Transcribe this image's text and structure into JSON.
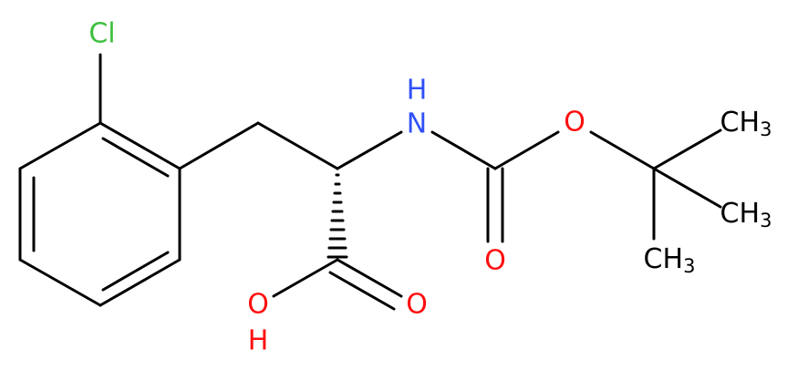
{
  "atoms": {
    "chlorine": {
      "text": "Cl"
    },
    "nitrogen": {
      "text": "N"
    },
    "nitrogen_h": {
      "text": "H"
    },
    "ester_oxygen": {
      "text": "O"
    },
    "carbamate_carbonyl_oxygen": {
      "text": "O"
    },
    "acid_carbonyl_oxygen": {
      "text": "O"
    },
    "hydroxyl_oxygen": {
      "text": "O"
    },
    "hydroxyl_h": {
      "text": "H"
    },
    "methyl_top": {
      "text": "CH",
      "sub": "3"
    },
    "methyl_middle": {
      "text": "CH",
      "sub": "3"
    },
    "methyl_bottom": {
      "text": "CH",
      "sub": "3"
    }
  }
}
